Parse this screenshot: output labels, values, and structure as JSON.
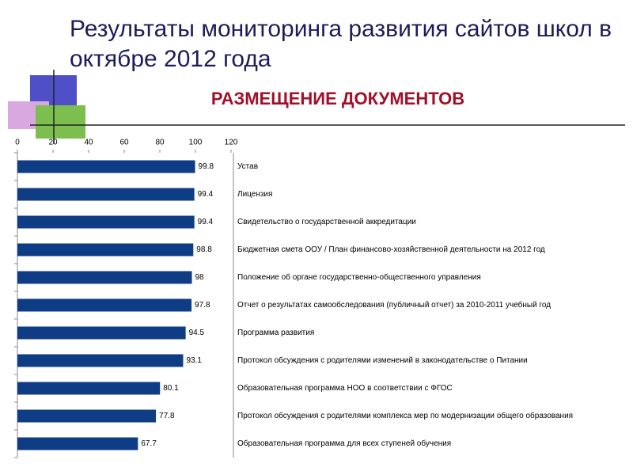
{
  "chart_data": {
    "type": "bar",
    "orientation": "horizontal",
    "title": "Результаты мониторинга развития сайтов школ в октябре 2012 года",
    "subtitle": "РАЗМЕЩЕНИЕ ДОКУМЕНТОВ",
    "categories": [
      "Устав",
      "Лицензия",
      "Свидетельство о государственной аккредитации",
      "Бюджетная смета ООУ / План финансово-хозяйственной деятельности на 2012 год",
      "Положение об органе государственно-общественного управления",
      "Отчет о результатах самообследования (публичный отчет) за 2010-2011 учебный год",
      "Программа развития",
      "Протокол обсуждения с родителями изменений в законодательстве о Питании",
      "Образовательная программа НОО в соответствии с ФГОС",
      "Протокол обсуждения с родителями комплекса мер по модернизации общего образования",
      "Образовательная программа для всех ступеней обучения"
    ],
    "values": [
      99.8,
      99.4,
      99.4,
      98.8,
      98,
      97.8,
      94.5,
      93.1,
      80.1,
      77.8,
      67.7
    ],
    "color": "#0e3c85",
    "xlim": [
      0,
      120
    ],
    "xticks": [
      0,
      20,
      40,
      60,
      80,
      100,
      120
    ],
    "grid": false
  }
}
